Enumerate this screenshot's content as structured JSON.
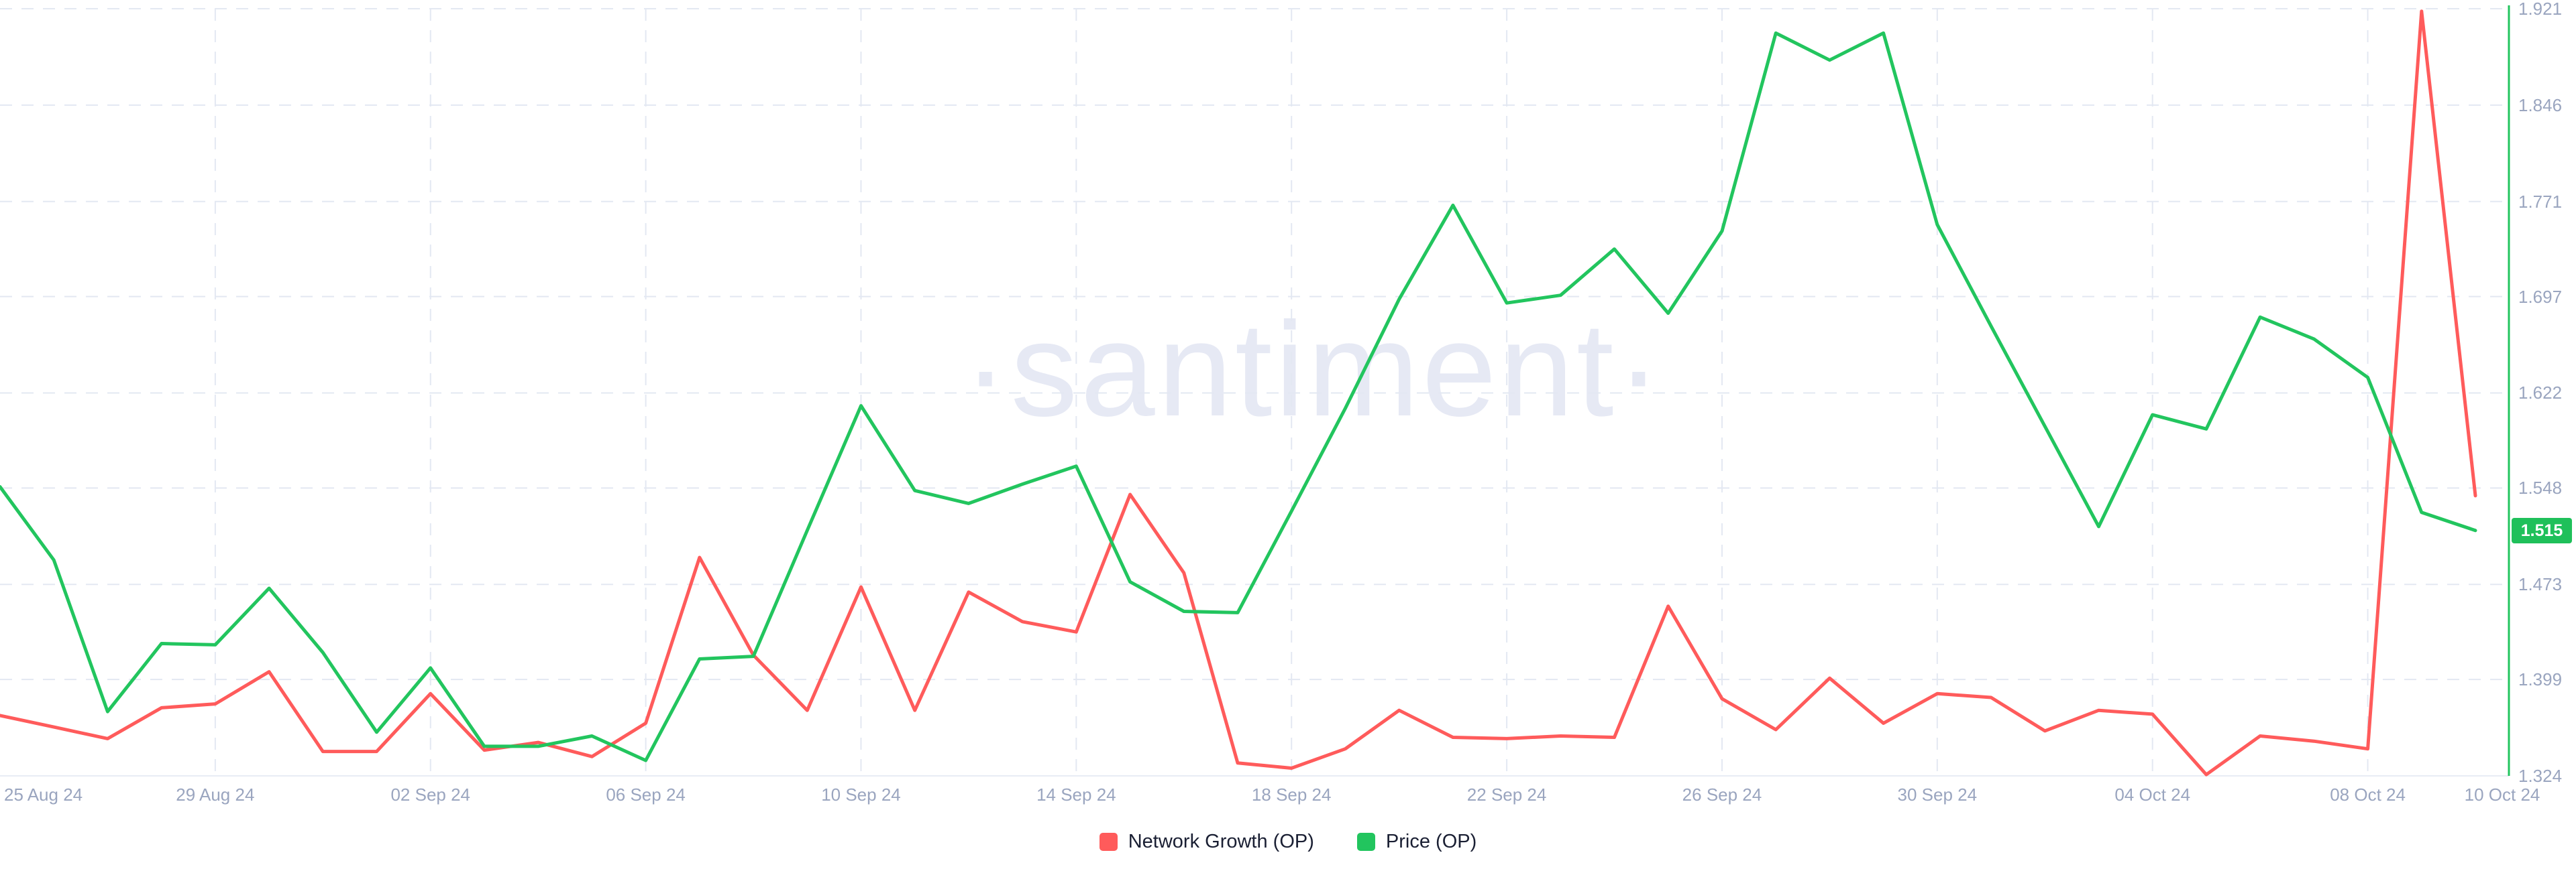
{
  "watermark": {
    "text": "·santiment·"
  },
  "badge": {
    "text": "1.515"
  },
  "legend": {
    "items": [
      {
        "label": "Network Growth (OP)",
        "color": "#ff5b5b"
      },
      {
        "label": "Price (OP)",
        "color": "#22c55e"
      }
    ]
  },
  "chart_data": {
    "type": "line",
    "title": "",
    "legend_position": "bottom",
    "grid": true,
    "x": [
      "25 Aug 24",
      "26 Aug 24",
      "27 Aug 24",
      "28 Aug 24",
      "29 Aug 24",
      "30 Aug 24",
      "31 Aug 24",
      "01 Sep 24",
      "02 Sep 24",
      "03 Sep 24",
      "04 Sep 24",
      "05 Sep 24",
      "06 Sep 24",
      "07 Sep 24",
      "08 Sep 24",
      "09 Sep 24",
      "10 Sep 24",
      "11 Sep 24",
      "12 Sep 24",
      "13 Sep 24",
      "14 Sep 24",
      "15 Sep 24",
      "16 Sep 24",
      "17 Sep 24",
      "18 Sep 24",
      "19 Sep 24",
      "20 Sep 24",
      "21 Sep 24",
      "22 Sep 24",
      "23 Sep 24",
      "24 Sep 24",
      "25 Sep 24",
      "26 Sep 24",
      "27 Sep 24",
      "28 Sep 24",
      "29 Sep 24",
      "30 Sep 24",
      "01 Oct 24",
      "02 Oct 24",
      "03 Oct 24",
      "04 Oct 24",
      "05 Oct 24",
      "06 Oct 24",
      "07 Oct 24",
      "08 Oct 24",
      "09 Oct 24",
      "10 Oct 24"
    ],
    "x_axis": {
      "tick_labels": [
        "25 Aug 24",
        "29 Aug 24",
        "02 Sep 24",
        "06 Sep 24",
        "10 Sep 24",
        "14 Sep 24",
        "18 Sep 24",
        "22 Sep 24",
        "26 Sep 24",
        "30 Sep 24",
        "04 Oct 24",
        "08 Oct 24",
        "10 Oct 24"
      ]
    },
    "y_axis": {
      "side": "right",
      "ticks": [
        1.921,
        1.846,
        1.771,
        1.697,
        1.622,
        1.548,
        1.473,
        1.399,
        1.324
      ],
      "min": 1.324,
      "max": 1.921,
      "last_value_badge": 1.515,
      "axis_line_color": "#22c55e"
    },
    "series": [
      {
        "name": "Network Growth (OP)",
        "color": "#ff5b5b",
        "axis": "hidden",
        "values": [
          1.371,
          1.362,
          1.353,
          1.377,
          1.38,
          1.405,
          1.343,
          1.343,
          1.388,
          1.344,
          1.35,
          1.339,
          1.365,
          1.494,
          1.418,
          1.375,
          1.471,
          1.375,
          1.467,
          1.444,
          1.436,
          1.543,
          1.482,
          1.334,
          1.33,
          1.345,
          1.375,
          1.354,
          1.353,
          1.355,
          1.354,
          1.456,
          1.384,
          1.36,
          1.4,
          1.365,
          1.388,
          1.385,
          1.359,
          1.375,
          1.372,
          1.325,
          1.355,
          1.351,
          1.345,
          1.919,
          1.542
        ]
      },
      {
        "name": "Price (OP)",
        "color": "#22c55e",
        "axis": "right",
        "values": [
          1.549,
          1.492,
          1.374,
          1.427,
          1.426,
          1.47,
          1.42,
          1.358,
          1.408,
          1.347,
          1.347,
          1.355,
          1.336,
          1.415,
          1.417,
          1.515,
          1.612,
          1.546,
          1.536,
          1.551,
          1.565,
          1.475,
          1.452,
          1.451,
          1.53,
          1.61,
          1.695,
          1.768,
          1.692,
          1.698,
          1.734,
          1.684,
          1.748,
          1.902,
          1.881,
          1.902,
          1.753,
          1.674,
          1.596,
          1.518,
          1.605,
          1.594,
          1.681,
          1.664,
          1.634,
          1.529,
          1.515
        ]
      }
    ],
    "colors": {
      "grid": "#e3e8f2",
      "baseline": "#e8ecf4",
      "axis_text": "#9aa5bf",
      "watermark": "#e6e9f4"
    }
  }
}
